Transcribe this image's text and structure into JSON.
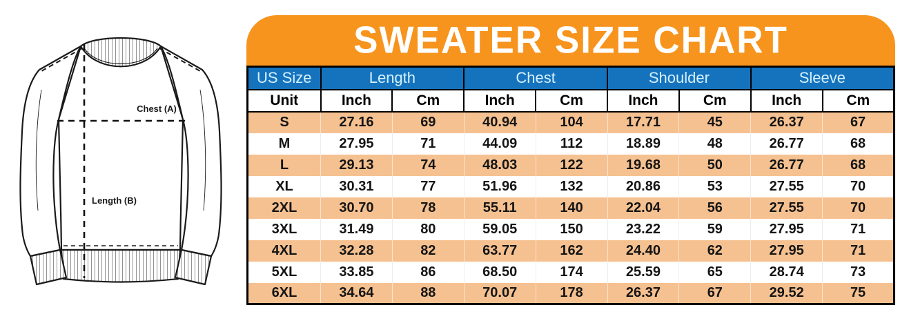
{
  "title": "SWEATER SIZE CHART",
  "diagram": {
    "chest_label": "Chest (A)",
    "length_label": "Length (B)"
  },
  "colors": {
    "banner_orange": "#F7941E",
    "header_blue": "#1573BE",
    "row_peach": "#F6C190",
    "header_text_blue_tint": "#D6F1FD"
  },
  "table": {
    "group_headers": [
      "US Size",
      "Length",
      "Chest",
      "Shoulder",
      "Sleeve"
    ],
    "unit_row": [
      "Unit",
      "Inch",
      "Cm",
      "Inch",
      "Cm",
      "Inch",
      "Cm",
      "Inch",
      "Cm"
    ],
    "rows": [
      {
        "size": "S",
        "values": [
          "27.16",
          "69",
          "40.94",
          "104",
          "17.71",
          "45",
          "26.37",
          "67"
        ]
      },
      {
        "size": "M",
        "values": [
          "27.95",
          "71",
          "44.09",
          "112",
          "18.89",
          "48",
          "26.77",
          "68"
        ]
      },
      {
        "size": "L",
        "values": [
          "29.13",
          "74",
          "48.03",
          "122",
          "19.68",
          "50",
          "26.77",
          "68"
        ]
      },
      {
        "size": "XL",
        "values": [
          "30.31",
          "77",
          "51.96",
          "132",
          "20.86",
          "53",
          "27.55",
          "70"
        ]
      },
      {
        "size": "2XL",
        "values": [
          "30.70",
          "78",
          "55.11",
          "140",
          "22.04",
          "56",
          "27.55",
          "70"
        ]
      },
      {
        "size": "3XL",
        "values": [
          "31.49",
          "80",
          "59.05",
          "150",
          "23.22",
          "59",
          "27.95",
          "71"
        ]
      },
      {
        "size": "4XL",
        "values": [
          "32.28",
          "82",
          "63.77",
          "162",
          "24.40",
          "62",
          "27.95",
          "71"
        ]
      },
      {
        "size": "5XL",
        "values": [
          "33.85",
          "86",
          "68.50",
          "174",
          "25.59",
          "65",
          "28.74",
          "73"
        ]
      },
      {
        "size": "6XL",
        "values": [
          "34.64",
          "88",
          "70.07",
          "178",
          "26.37",
          "67",
          "29.52",
          "75"
        ]
      }
    ]
  }
}
